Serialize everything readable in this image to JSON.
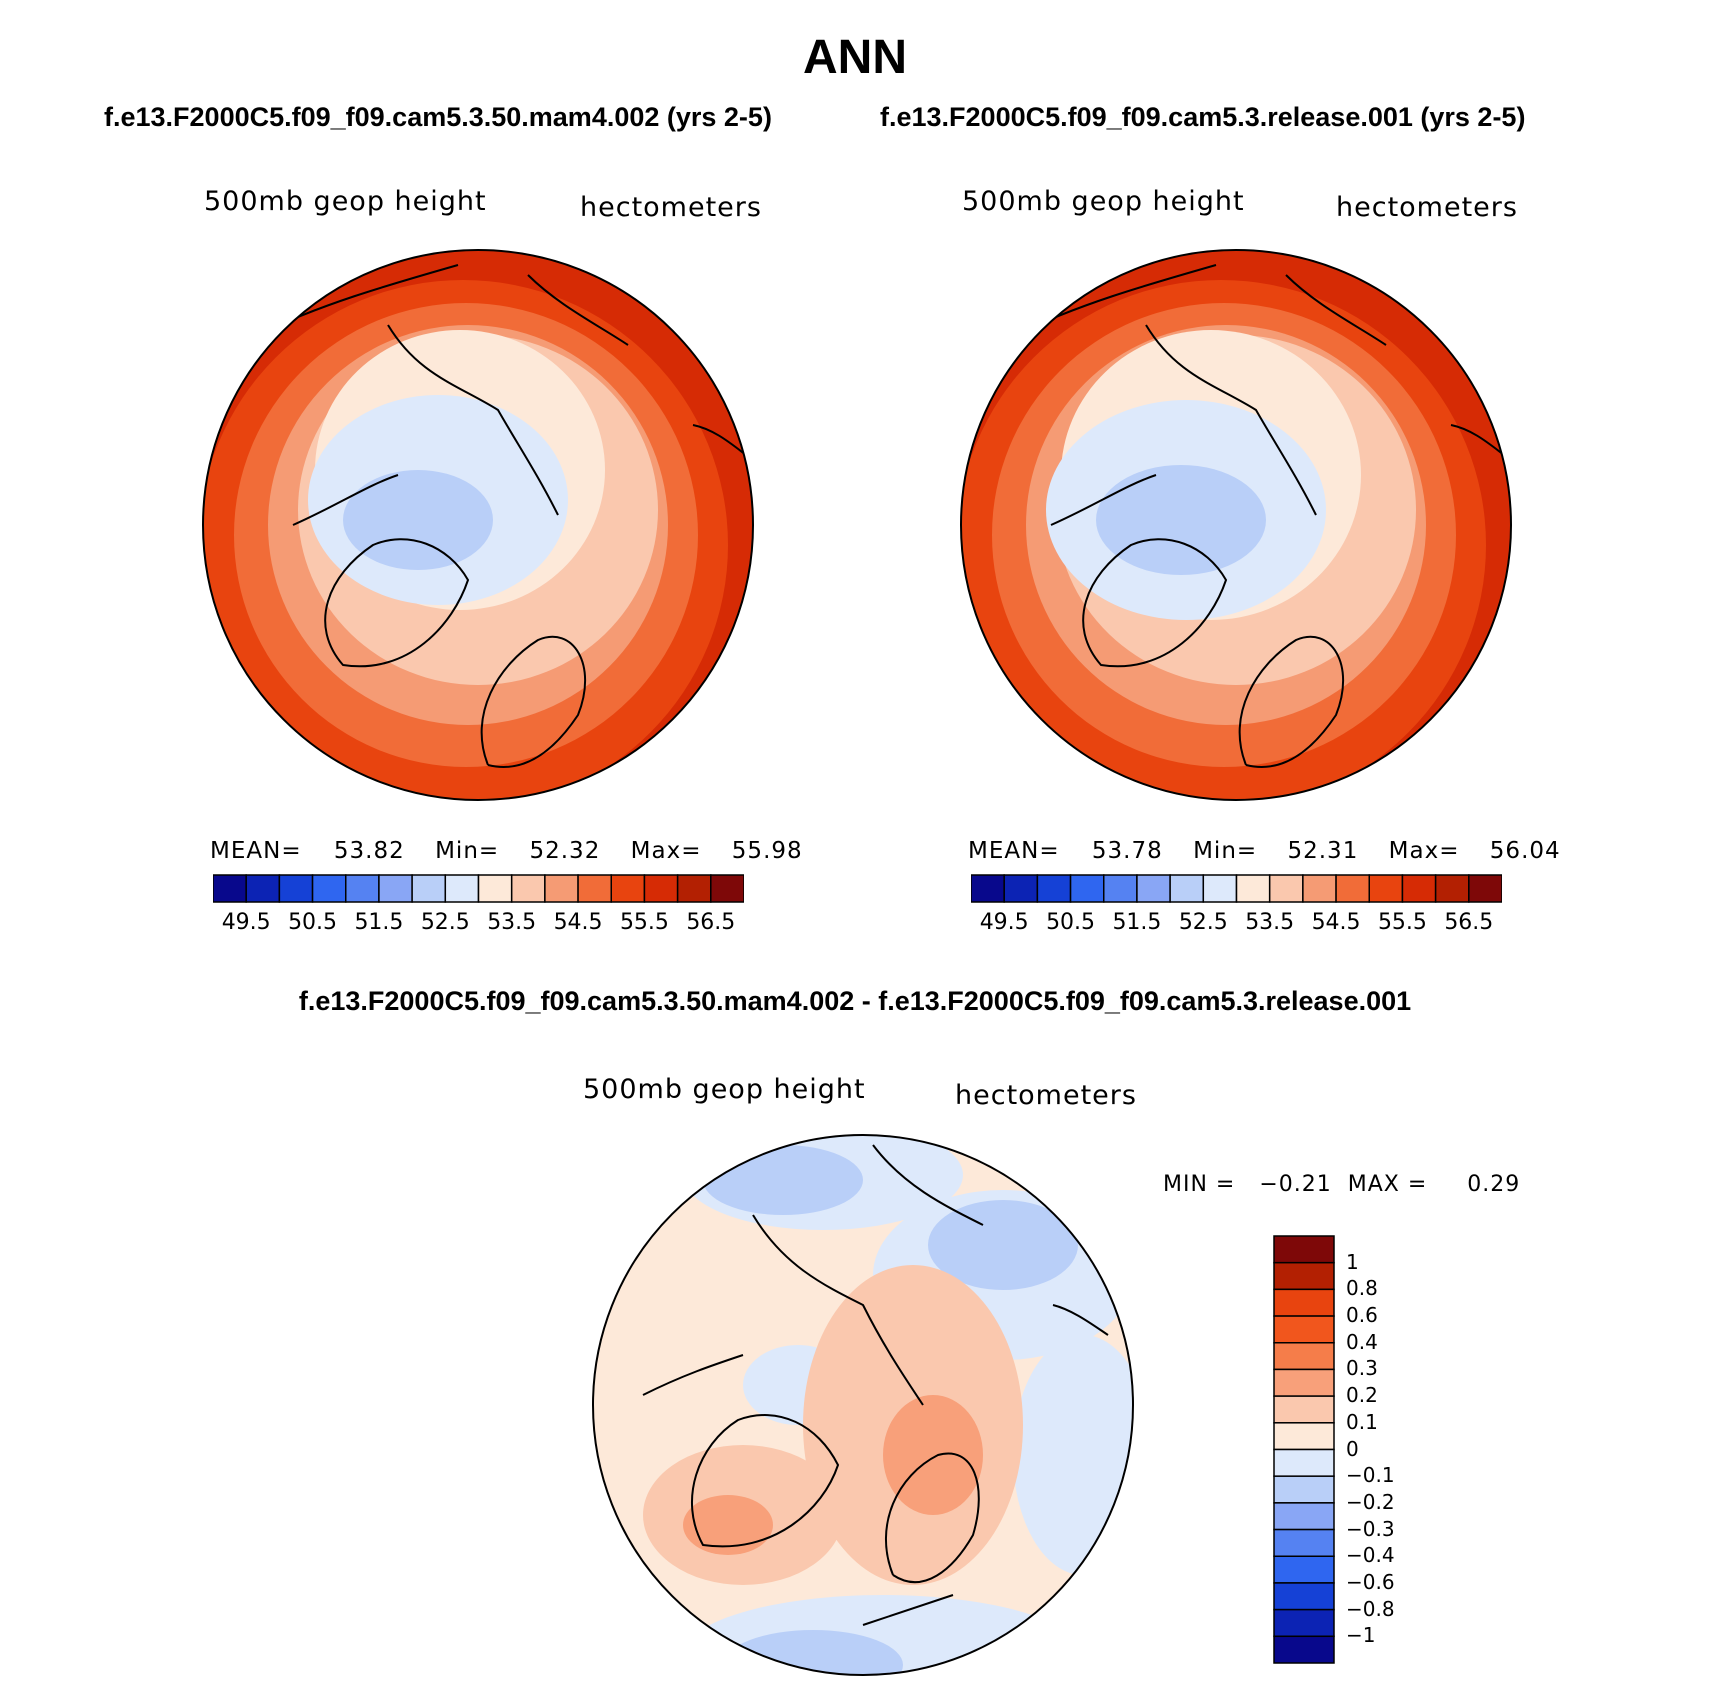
{
  "figure": {
    "season": "ANN",
    "case1": "f.e13.F2000C5.f09_f09.cam5.3.50.mam4.002 (yrs 2-5)",
    "case2": "f.e13.F2000C5.f09_f09.cam5.3.release.001 (yrs 2-5)",
    "diff_title": "f.e13.F2000C5.f09_f09.cam5.3.50.mam4.002 - f.e13.F2000C5.f09_f09.cam5.3.release.001"
  },
  "colors": {
    "abs_scale": [
      "#08088c",
      "#0c23b4",
      "#1541d6",
      "#2f66f0",
      "#5582f2",
      "#89a6f5",
      "#b9cff8",
      "#dde9fb",
      "#fde9d9",
      "#fac8ae",
      "#f59b74",
      "#f16c38",
      "#e8440f",
      "#d62b05",
      "#b32002",
      "#7e0808"
    ],
    "diff_scale": [
      "#7e0808",
      "#b32002",
      "#e8440f",
      "#f1561d",
      "#f57d4a",
      "#f8a07a",
      "#fac8ae",
      "#fde9d9",
      "#dde9fb",
      "#b9cff8",
      "#89a6f5",
      "#5582f2",
      "#2f66f0",
      "#1541d6",
      "#0c23b4",
      "#08088c"
    ],
    "coast": "#000000"
  },
  "panels": [
    {
      "variable": "500mb geop height",
      "units": "hectometers",
      "mean_label": "MEAN=",
      "mean": "53.82",
      "min_label": "Min=",
      "min": "52.32",
      "max_label": "Max=",
      "max": "55.98"
    },
    {
      "variable": "500mb geop height",
      "units": "hectometers",
      "mean_label": "MEAN=",
      "mean": "53.78",
      "min_label": "Min=",
      "min": "52.31",
      "max_label": "Max=",
      "max": "56.04"
    }
  ],
  "abs_colorbar_labels": [
    "49.5",
    "50.5",
    "51.5",
    "52.5",
    "53.5",
    "54.5",
    "55.5",
    "56.5"
  ],
  "diff_panel": {
    "variable": "500mb geop height",
    "units": "hectometers",
    "minmax_text": "MIN =   −0.21  MAX =     0.29",
    "colorbar_labels": [
      "1",
      "0.8",
      "0.6",
      "0.4",
      "0.3",
      "0.2",
      "0.1",
      "0",
      "−0.1",
      "−0.2",
      "−0.3",
      "−0.4",
      "−0.6",
      "−0.8",
      "−1"
    ]
  }
}
